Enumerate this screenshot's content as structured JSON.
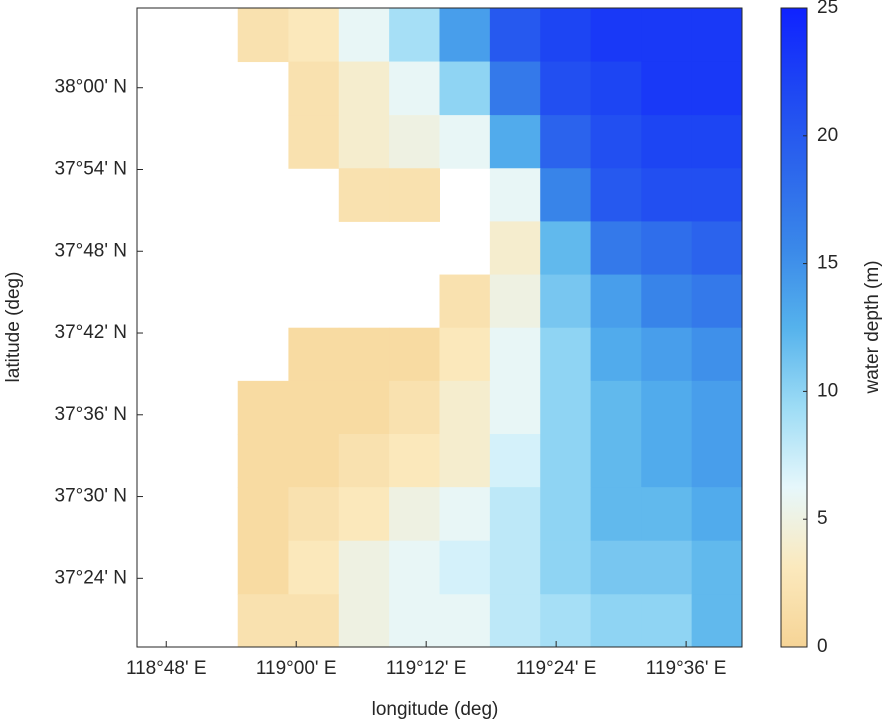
{
  "chart_data": {
    "type": "heatmap",
    "xlabel": "longitude (deg)",
    "ylabel": "latitude (deg)",
    "colorbar_label": "water depth (m)",
    "xlim": [
      118.755,
      119.686
    ],
    "ylim": [
      37.316,
      38.0975
    ],
    "xticks": [
      {
        "value": 118.8,
        "label": "118°48' E"
      },
      {
        "value": 119.0,
        "label": "119°00' E"
      },
      {
        "value": 119.2,
        "label": "119°12' E"
      },
      {
        "value": 119.4,
        "label": "119°24' E"
      },
      {
        "value": 119.6,
        "label": "119°36' E"
      }
    ],
    "yticks": [
      {
        "value": 37.4,
        "label": "37°24' N"
      },
      {
        "value": 37.5,
        "label": "37°30' N"
      },
      {
        "value": 37.6,
        "label": "37°36' N"
      },
      {
        "value": 37.7,
        "label": "37°42' N"
      },
      {
        "value": 37.8,
        "label": "37°48' N"
      },
      {
        "value": 37.9,
        "label": "37°54' N"
      },
      {
        "value": 38.0,
        "label": "38°00' N"
      }
    ],
    "clim": [
      0,
      25
    ],
    "cticks": [
      0,
      5,
      10,
      15,
      20,
      25
    ],
    "colormap": [
      "#f6d496",
      "#fbe9bd",
      "#e6f7fb",
      "#9ddcf5",
      "#55b2ec",
      "#3a88e9",
      "#2c66ec",
      "#1e46f3",
      "#0f22ff"
    ],
    "x": [
      118.794,
      118.871,
      118.949,
      119.027,
      119.104,
      119.182,
      119.259,
      119.337,
      119.414,
      119.492,
      119.57,
      119.647
    ],
    "y": [
      38.065,
      37.999,
      37.934,
      37.869,
      37.804,
      37.739,
      37.674,
      37.609,
      37.544,
      37.479,
      37.413,
      37.348
    ],
    "z": [
      [
        null,
        null,
        2,
        3,
        6,
        9,
        14,
        20,
        22,
        23,
        23,
        23
      ],
      [
        null,
        null,
        null,
        2,
        4,
        6,
        10,
        17,
        21,
        22,
        23,
        23
      ],
      [
        null,
        null,
        null,
        2,
        4,
        5,
        6,
        13,
        19,
        21,
        22,
        22
      ],
      [
        null,
        null,
        null,
        null,
        2,
        2,
        null,
        6,
        16,
        20,
        21,
        21
      ],
      [
        null,
        null,
        null,
        null,
        null,
        null,
        null,
        4,
        12,
        17,
        18,
        19
      ],
      [
        null,
        null,
        null,
        null,
        null,
        null,
        2,
        5,
        11,
        14,
        16,
        17
      ],
      [
        null,
        null,
        null,
        1,
        1,
        1,
        3,
        6,
        10,
        13,
        14,
        15
      ],
      [
        null,
        null,
        1,
        1,
        1,
        2,
        4,
        6,
        10,
        12,
        13,
        14
      ],
      [
        null,
        null,
        1,
        1,
        2,
        3,
        4,
        7,
        10,
        12,
        13,
        14
      ],
      [
        null,
        null,
        1,
        2,
        3,
        5,
        6,
        8,
        10,
        12,
        12,
        13
      ],
      [
        null,
        null,
        1,
        3,
        5,
        6,
        7,
        8,
        10,
        11,
        11,
        12
      ],
      [
        null,
        null,
        2,
        2,
        5,
        6,
        6,
        8,
        9,
        10,
        10,
        12
      ]
    ]
  }
}
